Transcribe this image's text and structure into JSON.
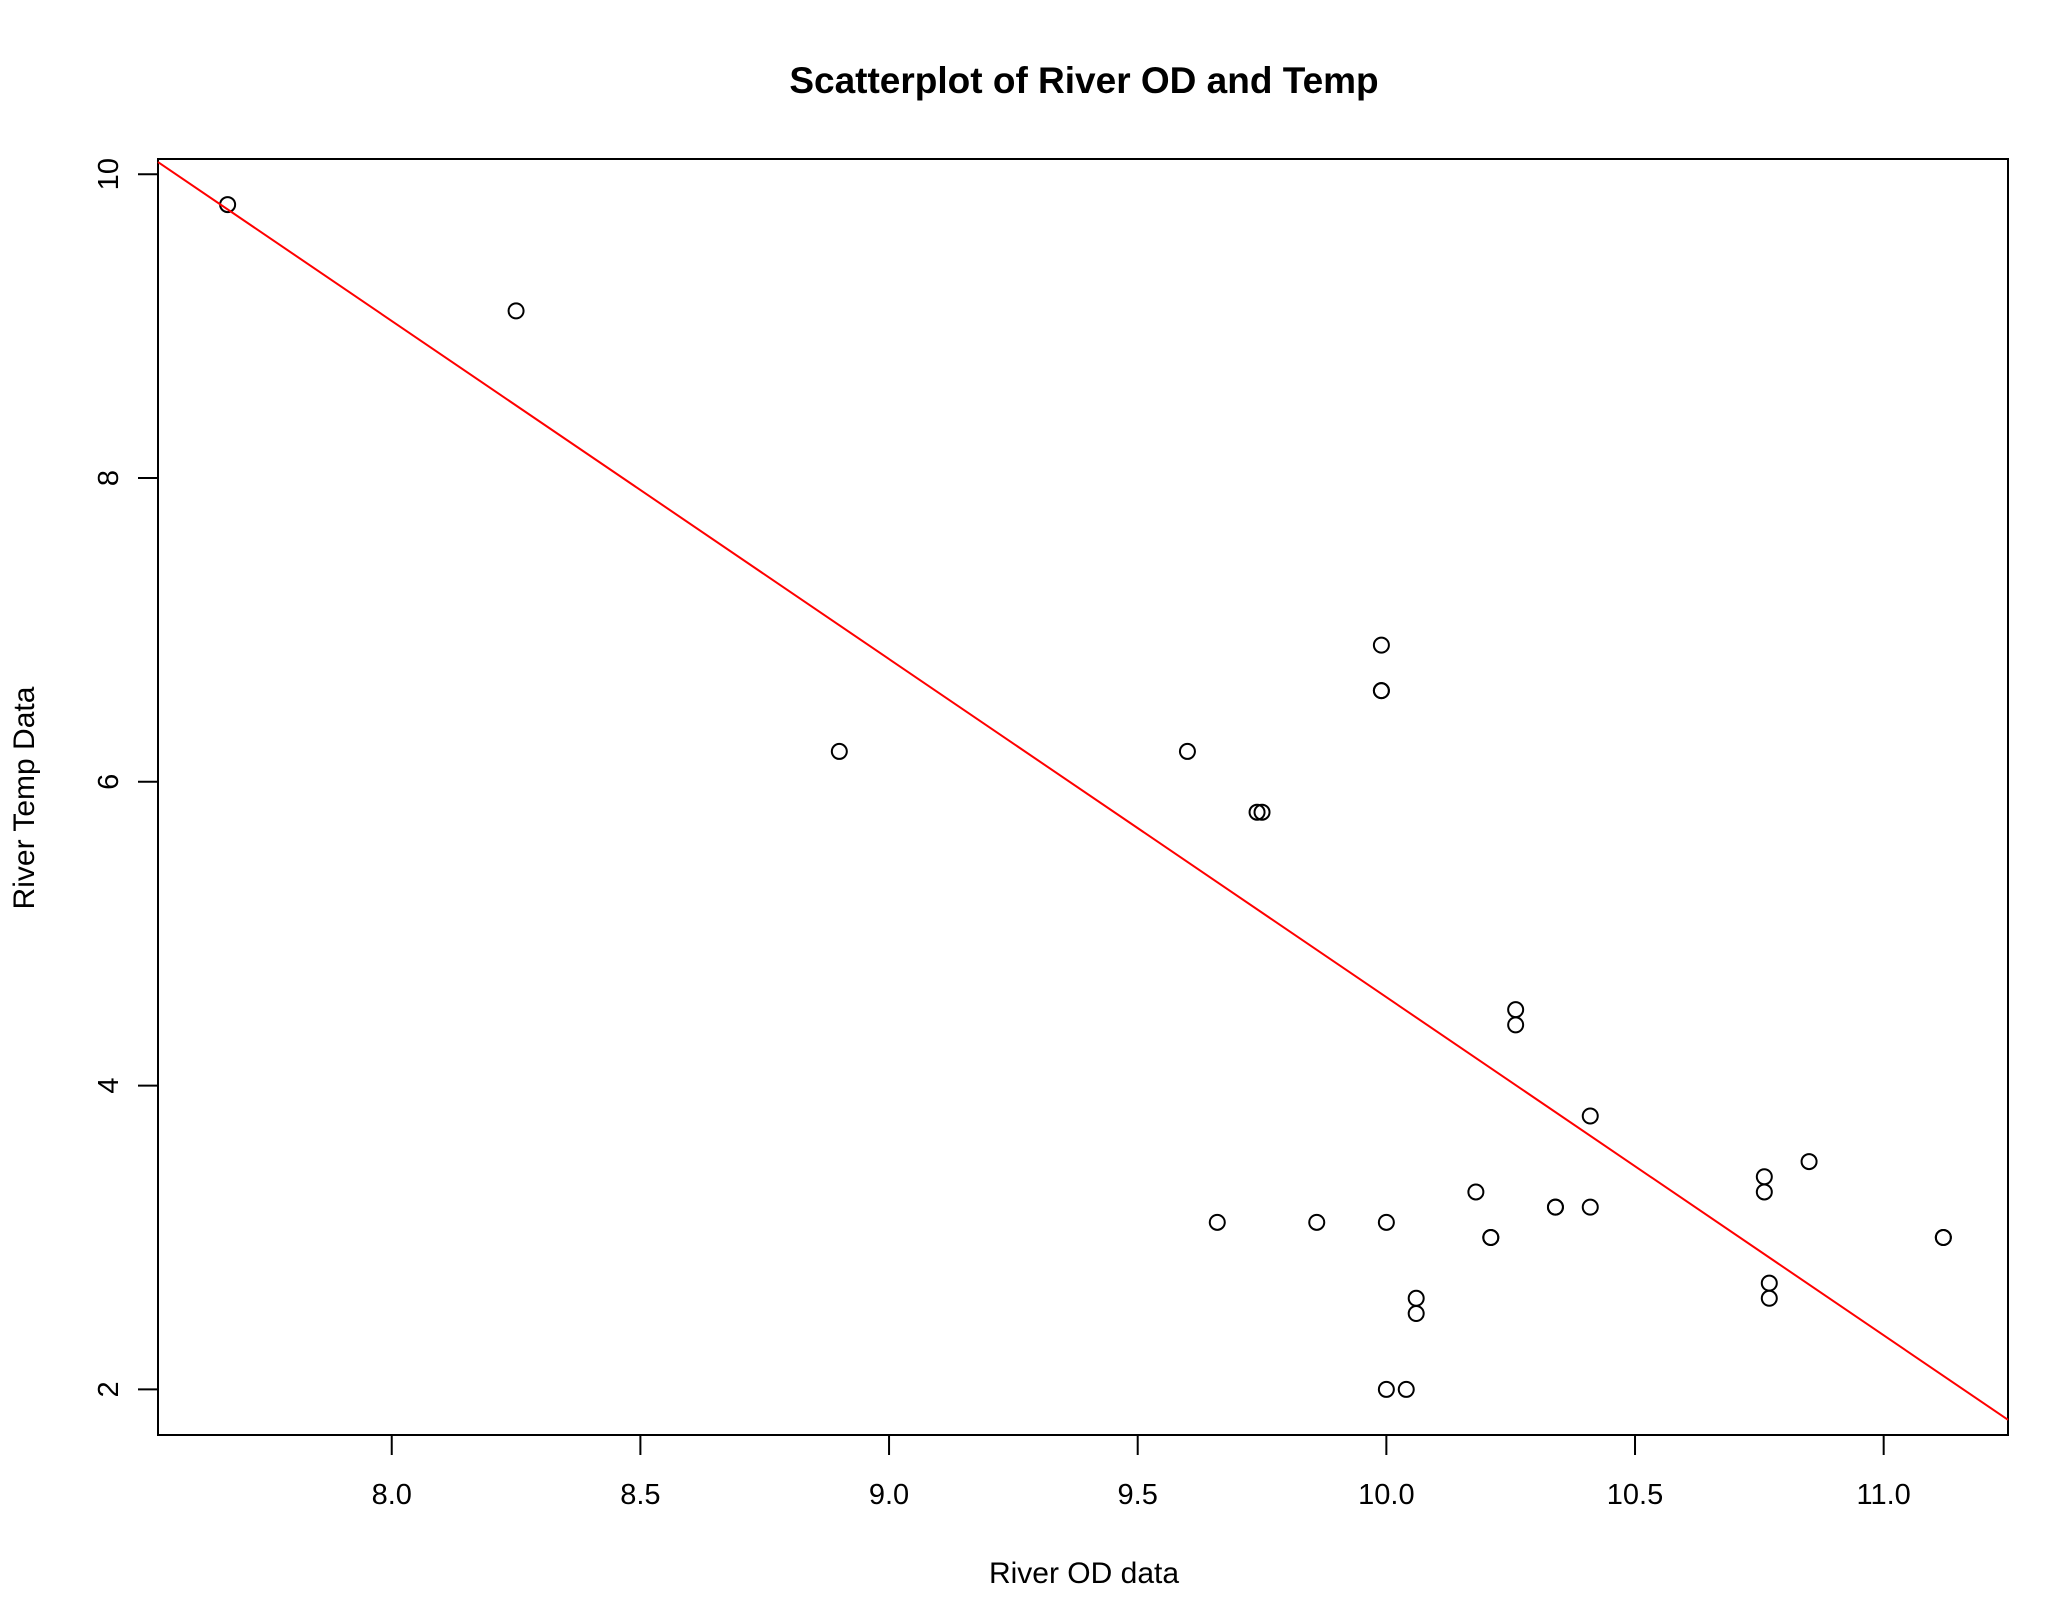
{
  "chart_data": {
    "type": "scatter",
    "title": "Scatterplot of River OD and Temp",
    "xlabel": "River OD data",
    "ylabel": "River Temp Data",
    "xlim": [
      7.53,
      11.25
    ],
    "ylim": [
      1.7,
      10.1
    ],
    "xticks": [
      8.0,
      8.5,
      9.0,
      9.5,
      10.0,
      10.5,
      11.0
    ],
    "xtick_labels": [
      "8.0",
      "8.5",
      "9.0",
      "9.5",
      "10.0",
      "10.5",
      "11.0"
    ],
    "yticks": [
      2,
      4,
      6,
      8,
      10
    ],
    "ytick_labels": [
      "2",
      "4",
      "6",
      "8",
      "10"
    ],
    "grid": false,
    "legend": "none",
    "point_style": "open-circle",
    "point_color": "#000000",
    "points": [
      {
        "x": 7.67,
        "y": 9.8
      },
      {
        "x": 8.25,
        "y": 9.1
      },
      {
        "x": 8.9,
        "y": 6.2
      },
      {
        "x": 9.6,
        "y": 6.2
      },
      {
        "x": 9.66,
        "y": 3.1
      },
      {
        "x": 9.74,
        "y": 5.8
      },
      {
        "x": 9.75,
        "y": 5.8
      },
      {
        "x": 9.86,
        "y": 3.1
      },
      {
        "x": 9.99,
        "y": 6.9
      },
      {
        "x": 9.99,
        "y": 6.6
      },
      {
        "x": 9.99,
        "y": 6.6
      },
      {
        "x": 10.0,
        "y": 3.1
      },
      {
        "x": 10.0,
        "y": 2.0
      },
      {
        "x": 10.04,
        "y": 2.0
      },
      {
        "x": 10.06,
        "y": 2.6
      },
      {
        "x": 10.06,
        "y": 2.5
      },
      {
        "x": 10.18,
        "y": 3.3
      },
      {
        "x": 10.21,
        "y": 3.0
      },
      {
        "x": 10.21,
        "y": 3.0
      },
      {
        "x": 10.26,
        "y": 4.5
      },
      {
        "x": 10.26,
        "y": 4.4
      },
      {
        "x": 10.34,
        "y": 3.2
      },
      {
        "x": 10.34,
        "y": 3.2
      },
      {
        "x": 10.41,
        "y": 3.8
      },
      {
        "x": 10.41,
        "y": 3.2
      },
      {
        "x": 10.76,
        "y": 3.4
      },
      {
        "x": 10.76,
        "y": 3.3
      },
      {
        "x": 10.77,
        "y": 2.7
      },
      {
        "x": 10.77,
        "y": 2.6
      },
      {
        "x": 10.85,
        "y": 3.5
      },
      {
        "x": 11.12,
        "y": 3.0
      },
      {
        "x": 11.12,
        "y": 3.0
      }
    ],
    "regression_line": {
      "color": "#ff0000",
      "x": [
        7.53,
        11.25
      ],
      "y": [
        10.08,
        1.8
      ]
    }
  }
}
